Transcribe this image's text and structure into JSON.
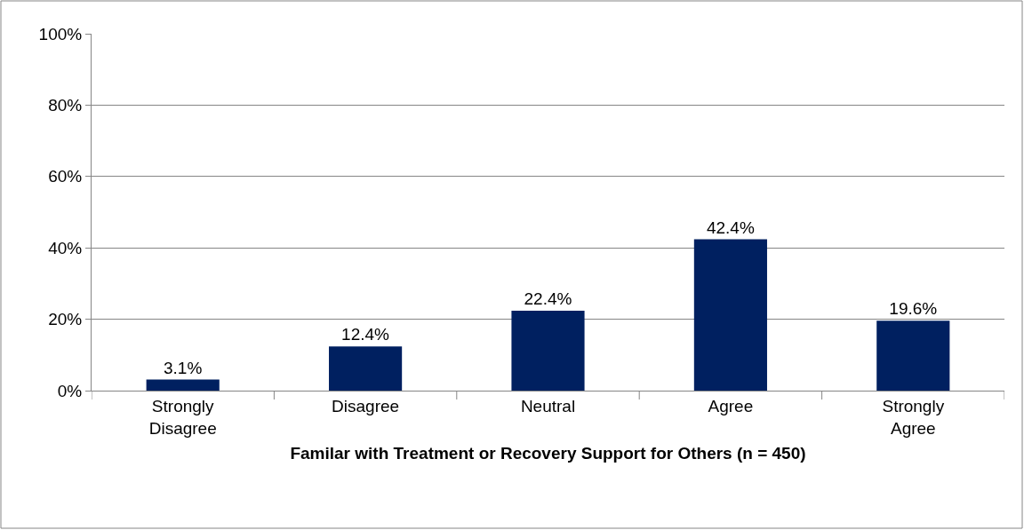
{
  "chart_data": {
    "type": "bar",
    "xlabel": "Familar with Treatment or Recovery Support for Others (n = 450)",
    "categories": [
      "Strongly Disagree",
      "Disagree",
      "Neutral",
      "Agree",
      "Strongly Agree"
    ],
    "values": [
      3.1,
      12.4,
      22.4,
      42.4,
      19.6
    ],
    "value_labels": [
      "3.1%",
      "12.4%",
      "22.4%",
      "42.4%",
      "19.6%"
    ],
    "color": "#002060",
    "ylim": [
      0,
      100
    ],
    "yticks": [
      {
        "value": 0,
        "label": "0%"
      },
      {
        "value": 20,
        "label": "20%"
      },
      {
        "value": 40,
        "label": "40%"
      },
      {
        "value": 60,
        "label": "60%"
      },
      {
        "value": 80,
        "label": "80%"
      },
      {
        "value": 100,
        "label": "100%"
      }
    ],
    "grid": "y",
    "legend": false
  }
}
